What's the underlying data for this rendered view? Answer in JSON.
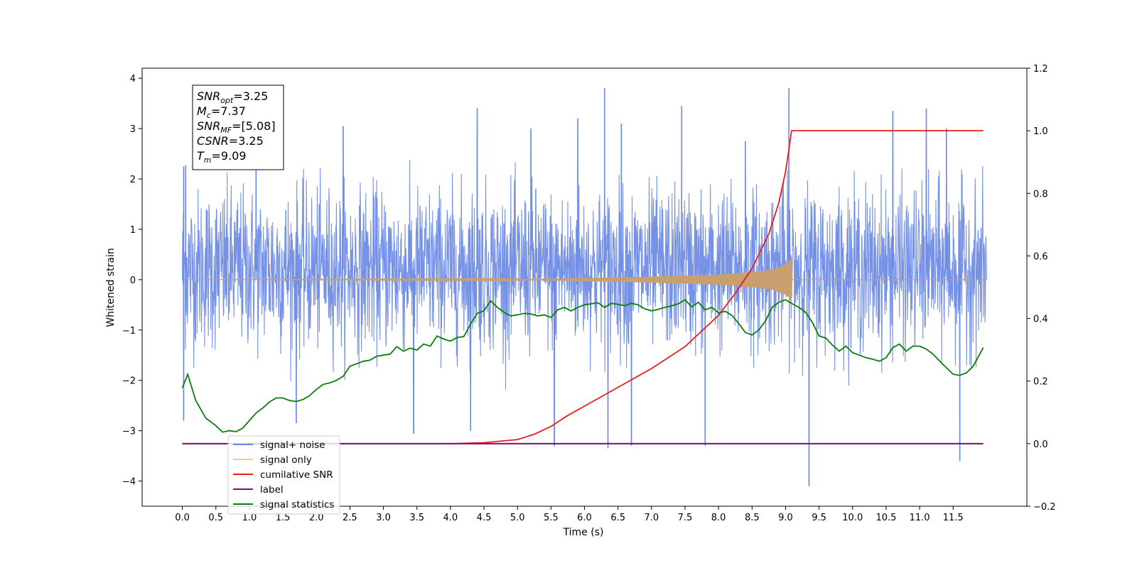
{
  "chart_data": {
    "type": "line",
    "xlabel": "Time (s)",
    "ylabel_left": "Whitened strain",
    "ylabel_right": "",
    "xlim": [
      -0.6,
      12.6
    ],
    "ylim_left": [
      -4.5,
      4.2
    ],
    "ylim_right": [
      -0.2,
      1.2
    ],
    "x_ticks": [
      0.0,
      0.5,
      1.0,
      1.5,
      2.0,
      2.5,
      3.0,
      3.5,
      4.0,
      4.5,
      5.0,
      5.5,
      6.0,
      6.5,
      7.0,
      7.5,
      8.0,
      8.5,
      9.0,
      9.5,
      10.0,
      10.5,
      11.0,
      11.5
    ],
    "x_tick_labels": [
      "0.0",
      "0.5",
      "1.0",
      "1.5",
      "2.0",
      "2.5",
      "3.0",
      "3.5",
      "4.0",
      "4.5",
      "5.0",
      "5.5",
      "6.0",
      "6.5",
      "7.0",
      "7.5",
      "8.0",
      "8.5",
      "9.0",
      "9.5",
      "10.0",
      "10.5",
      "11.0",
      "11.5"
    ],
    "y_ticks_left": [
      -4,
      -3,
      -2,
      -1,
      0,
      1,
      2,
      3,
      4
    ],
    "y_tick_labels_left": [
      "−4",
      "−3",
      "−2",
      "−1",
      "0",
      "1",
      "2",
      "3",
      "4"
    ],
    "y_ticks_right": [
      -0.2,
      0.0,
      0.2,
      0.4,
      0.6,
      0.8,
      1.0,
      1.2
    ],
    "y_tick_labels_right": [
      "−0.2",
      "0.0",
      "0.2",
      "0.4",
      "0.6",
      "0.8",
      "1.0",
      "1.2"
    ],
    "grid": false,
    "legend_position": "lower-left",
    "series": [
      {
        "name": "signal+ noise",
        "axis": "left",
        "color": "#6a89e4",
        "style": "dense noise trace",
        "x_range": [
          0.0,
          12.0
        ],
        "band_typical": [
          -1.6,
          1.8
        ],
        "peaks_high": [
          [
            0.02,
            2.25
          ],
          [
            0.05,
            2.27
          ],
          [
            1.1,
            2.5
          ],
          [
            2.4,
            3.05
          ],
          [
            4.4,
            3.4
          ],
          [
            5.2,
            3.0
          ],
          [
            5.9,
            3.2
          ],
          [
            6.3,
            3.8
          ],
          [
            6.55,
            3.1
          ],
          [
            7.45,
            3.45
          ],
          [
            8.4,
            2.75
          ],
          [
            9.05,
            3.8
          ],
          [
            10.6,
            3.35
          ],
          [
            11.1,
            3.4
          ],
          [
            11.4,
            3.0
          ]
        ],
        "peaks_low": [
          [
            0.02,
            -2.8
          ],
          [
            1.7,
            -2.85
          ],
          [
            3.45,
            -3.05
          ],
          [
            4.3,
            -3.0
          ],
          [
            5.55,
            -3.3
          ],
          [
            6.35,
            -3.35
          ],
          [
            6.7,
            -3.3
          ],
          [
            7.8,
            -3.3
          ],
          [
            9.35,
            -4.1
          ],
          [
            11.6,
            -3.6
          ]
        ]
      },
      {
        "name": "signal only",
        "axis": "left",
        "color": "#f0b070",
        "style": "chirp",
        "x": [
          0.0,
          5.0,
          6.0,
          7.0,
          8.0,
          8.5,
          8.8,
          9.0,
          9.05,
          9.09,
          9.1,
          12.0
        ],
        "amplitude": [
          0.0,
          0.01,
          0.03,
          0.06,
          0.1,
          0.15,
          0.2,
          0.3,
          0.35,
          0.45,
          0.0,
          0.0
        ]
      },
      {
        "name": "cumilative SNR",
        "axis": "right",
        "color": "#ee1b1b",
        "x": [
          0.0,
          4.0,
          4.5,
          5.0,
          5.25,
          5.5,
          5.75,
          6.0,
          6.5,
          7.0,
          7.5,
          8.0,
          8.25,
          8.5,
          8.75,
          8.9,
          9.0,
          9.05,
          9.09,
          11.95
        ],
        "values": [
          0.0,
          0.0,
          0.003,
          0.013,
          0.03,
          0.055,
          0.09,
          0.12,
          0.18,
          0.24,
          0.31,
          0.41,
          0.48,
          0.56,
          0.67,
          0.77,
          0.87,
          0.94,
          1.0,
          1.0
        ]
      },
      {
        "name": "label",
        "axis": "right",
        "color": "#7b0e7b",
        "x": [
          0.0,
          11.95
        ],
        "values": [
          0.0,
          0.0
        ]
      },
      {
        "name": "signal statistics",
        "axis": "left",
        "color": "#0b7d0b",
        "x": [
          0.0,
          0.08,
          0.2,
          0.35,
          0.5,
          0.6,
          0.7,
          0.8,
          0.9,
          1.0,
          1.1,
          1.2,
          1.3,
          1.4,
          1.5,
          1.6,
          1.7,
          1.8,
          1.9,
          2.0,
          2.1,
          2.2,
          2.3,
          2.4,
          2.5,
          2.6,
          2.7,
          2.8,
          2.9,
          3.0,
          3.1,
          3.2,
          3.3,
          3.4,
          3.5,
          3.6,
          3.7,
          3.8,
          3.9,
          4.0,
          4.1,
          4.2,
          4.3,
          4.4,
          4.5,
          4.6,
          4.7,
          4.8,
          4.9,
          5.0,
          5.1,
          5.2,
          5.3,
          5.4,
          5.5,
          5.6,
          5.7,
          5.8,
          5.9,
          6.0,
          6.1,
          6.2,
          6.3,
          6.4,
          6.5,
          6.6,
          6.7,
          6.8,
          6.9,
          7.0,
          7.1,
          7.2,
          7.3,
          7.4,
          7.5,
          7.6,
          7.7,
          7.8,
          7.9,
          8.0,
          8.1,
          8.2,
          8.3,
          8.4,
          8.5,
          8.6,
          8.7,
          8.8,
          8.9,
          9.0,
          9.1,
          9.2,
          9.3,
          9.4,
          9.5,
          9.6,
          9.7,
          9.8,
          9.9,
          10.0,
          10.1,
          10.2,
          10.3,
          10.4,
          10.5,
          10.6,
          10.7,
          10.8,
          10.9,
          11.0,
          11.1,
          11.2,
          11.3,
          11.4,
          11.5,
          11.6,
          11.7,
          11.8,
          11.95
        ],
        "values": [
          -2.15,
          -1.88,
          -2.4,
          -2.75,
          -2.9,
          -3.03,
          -3.0,
          -3.02,
          -2.95,
          -2.8,
          -2.65,
          -2.55,
          -2.43,
          -2.35,
          -2.35,
          -2.4,
          -2.42,
          -2.38,
          -2.3,
          -2.18,
          -2.08,
          -2.05,
          -2.0,
          -1.92,
          -1.72,
          -1.67,
          -1.62,
          -1.6,
          -1.52,
          -1.5,
          -1.48,
          -1.33,
          -1.42,
          -1.36,
          -1.4,
          -1.28,
          -1.32,
          -1.12,
          -1.18,
          -1.22,
          -1.15,
          -1.13,
          -0.88,
          -0.67,
          -0.62,
          -0.42,
          -0.55,
          -0.65,
          -0.72,
          -0.7,
          -0.67,
          -0.68,
          -0.72,
          -0.7,
          -0.75,
          -0.6,
          -0.55,
          -0.62,
          -0.55,
          -0.5,
          -0.48,
          -0.46,
          -0.55,
          -0.47,
          -0.49,
          -0.52,
          -0.47,
          -0.5,
          -0.58,
          -0.62,
          -0.59,
          -0.55,
          -0.52,
          -0.48,
          -0.4,
          -0.54,
          -0.45,
          -0.6,
          -0.55,
          -0.66,
          -0.63,
          -0.71,
          -0.87,
          -1.05,
          -1.1,
          -1.0,
          -0.82,
          -0.55,
          -0.45,
          -0.4,
          -0.48,
          -0.55,
          -0.65,
          -0.85,
          -1.12,
          -1.16,
          -1.3,
          -1.42,
          -1.32,
          -1.45,
          -1.5,
          -1.55,
          -1.58,
          -1.62,
          -1.55,
          -1.35,
          -1.28,
          -1.42,
          -1.32,
          -1.32,
          -1.38,
          -1.48,
          -1.62,
          -1.75,
          -1.88,
          -1.9,
          -1.85,
          -1.72,
          -1.35
        ]
      }
    ],
    "legend_entries": [
      {
        "label": "signal+ noise",
        "color": "#6a89e4"
      },
      {
        "label": "signal only",
        "color": "#f8c880"
      },
      {
        "label": "cumilative SNR",
        "color": "#ee1b1b"
      },
      {
        "label": "label",
        "color": "#7b0e7b"
      },
      {
        "label": "signal statistics",
        "color": "#0b7d0b"
      }
    ],
    "annotation": {
      "lines": [
        {
          "main": "SNR",
          "sub": "opt",
          "value": "=3.25"
        },
        {
          "main": "M",
          "sub": "c",
          "value": "=7.37"
        },
        {
          "main": "SNR",
          "sub": "MF",
          "value": "=[5.08]"
        },
        {
          "main": "CSNR",
          "sub": "",
          "value": "=3.25"
        },
        {
          "main": "T",
          "sub": "m",
          "value": "=9.09"
        }
      ]
    }
  }
}
